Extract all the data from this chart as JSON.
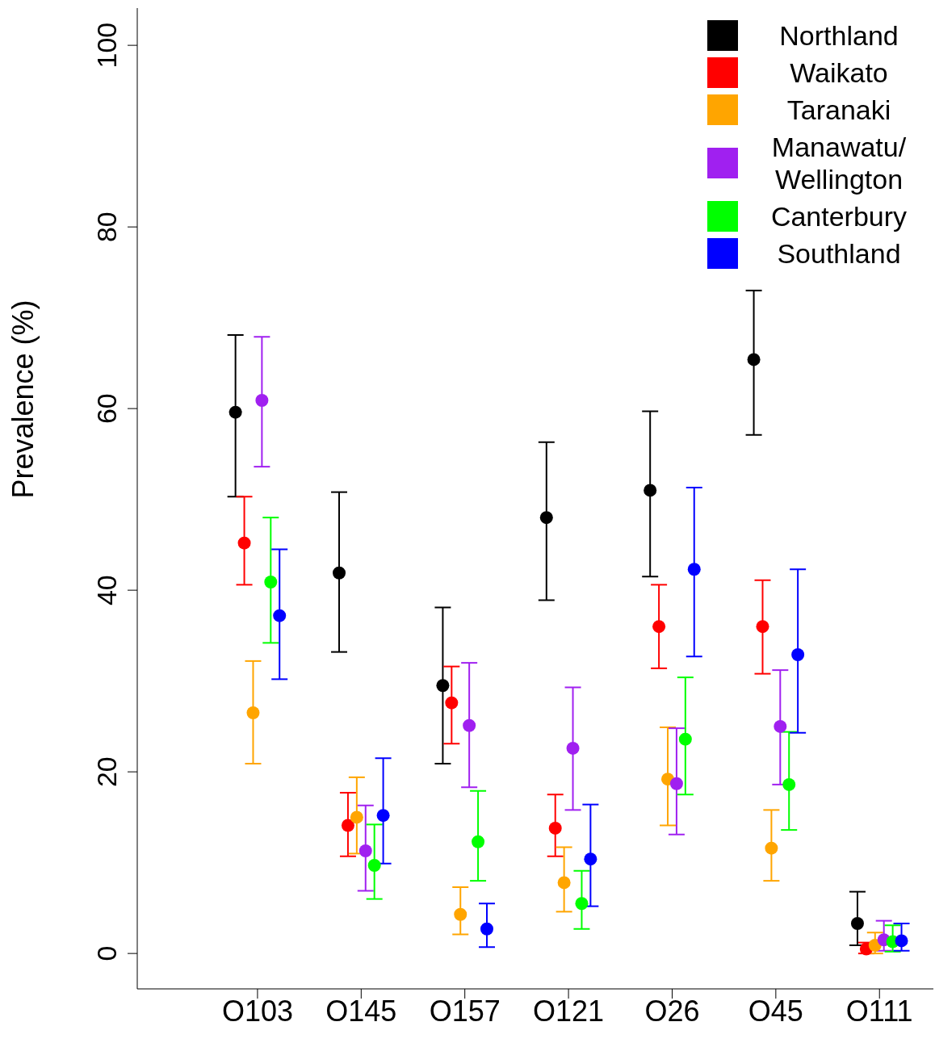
{
  "chart_data": {
    "type": "scatter",
    "ylabel": "Prevalence (%)",
    "categories": [
      "O103",
      "O145",
      "O157",
      "O121",
      "O26",
      "O45",
      "O111"
    ],
    "ylim": [
      -3.9,
      104.1
    ],
    "yticks": [
      0,
      20,
      40,
      60,
      80,
      100
    ],
    "grid": false,
    "legend": "top right",
    "marker": "circle",
    "series": [
      {
        "name": "Northland",
        "color": "#000000",
        "values": [
          59.6,
          41.9,
          29.5,
          48.0,
          51.0,
          65.4,
          3.3
        ],
        "errors": [
          [
            50.3,
            68.1
          ],
          [
            33.2,
            50.8
          ],
          [
            20.9,
            38.1
          ],
          [
            38.9,
            56.3
          ],
          [
            41.5,
            59.7
          ],
          [
            57.1,
            73.0
          ],
          [
            0.9,
            6.8
          ]
        ]
      },
      {
        "name": "Waikato",
        "color": "#ff0000",
        "values": [
          45.2,
          14.1,
          27.6,
          13.8,
          36.0,
          36.0,
          0.5
        ],
        "errors": [
          [
            40.6,
            50.3
          ],
          [
            10.7,
            17.7
          ],
          [
            23.1,
            31.6
          ],
          [
            10.7,
            17.5
          ],
          [
            31.4,
            40.6
          ],
          [
            30.8,
            41.1
          ],
          [
            0,
            1.2
          ]
        ]
      },
      {
        "name": "Taranaki",
        "color": "#ffa500",
        "values": [
          26.5,
          15.0,
          4.3,
          7.8,
          19.2,
          11.6,
          0.9
        ],
        "errors": [
          [
            20.9,
            32.2
          ],
          [
            11.0,
            19.4
          ],
          [
            2.1,
            7.3
          ],
          [
            4.6,
            11.7
          ],
          [
            14.1,
            24.9
          ],
          [
            8.0,
            15.8
          ],
          [
            0,
            2.3
          ]
        ]
      },
      {
        "name": "Manawatu/Wellington",
        "color": "#a020f0",
        "values": [
          60.9,
          11.3,
          25.1,
          22.6,
          18.7,
          25.0,
          1.5
        ],
        "errors": [
          [
            53.6,
            67.9
          ],
          [
            6.9,
            16.3
          ],
          [
            18.3,
            32.0
          ],
          [
            15.8,
            29.3
          ],
          [
            13.1,
            24.8
          ],
          [
            18.6,
            31.2
          ],
          [
            0.3,
            3.6
          ]
        ]
      },
      {
        "name": "Canterbury",
        "color": "#00ff00",
        "values": [
          40.9,
          9.7,
          12.3,
          5.5,
          23.6,
          18.6,
          1.3
        ],
        "errors": [
          [
            34.2,
            48.0
          ],
          [
            6.0,
            14.2
          ],
          [
            8.0,
            17.9
          ],
          [
            2.7,
            9.1
          ],
          [
            17.5,
            30.4
          ],
          [
            13.6,
            24.4
          ],
          [
            0.2,
            3.1
          ]
        ]
      },
      {
        "name": "Southland",
        "color": "#0000ff",
        "values": [
          37.2,
          15.2,
          2.7,
          10.4,
          42.3,
          32.9,
          1.4
        ],
        "errors": [
          [
            30.2,
            44.5
          ],
          [
            9.9,
            21.5
          ],
          [
            0.7,
            5.5
          ],
          [
            5.2,
            16.4
          ],
          [
            32.7,
            51.3
          ],
          [
            24.3,
            42.3
          ],
          [
            0.3,
            3.3
          ]
        ]
      }
    ]
  }
}
